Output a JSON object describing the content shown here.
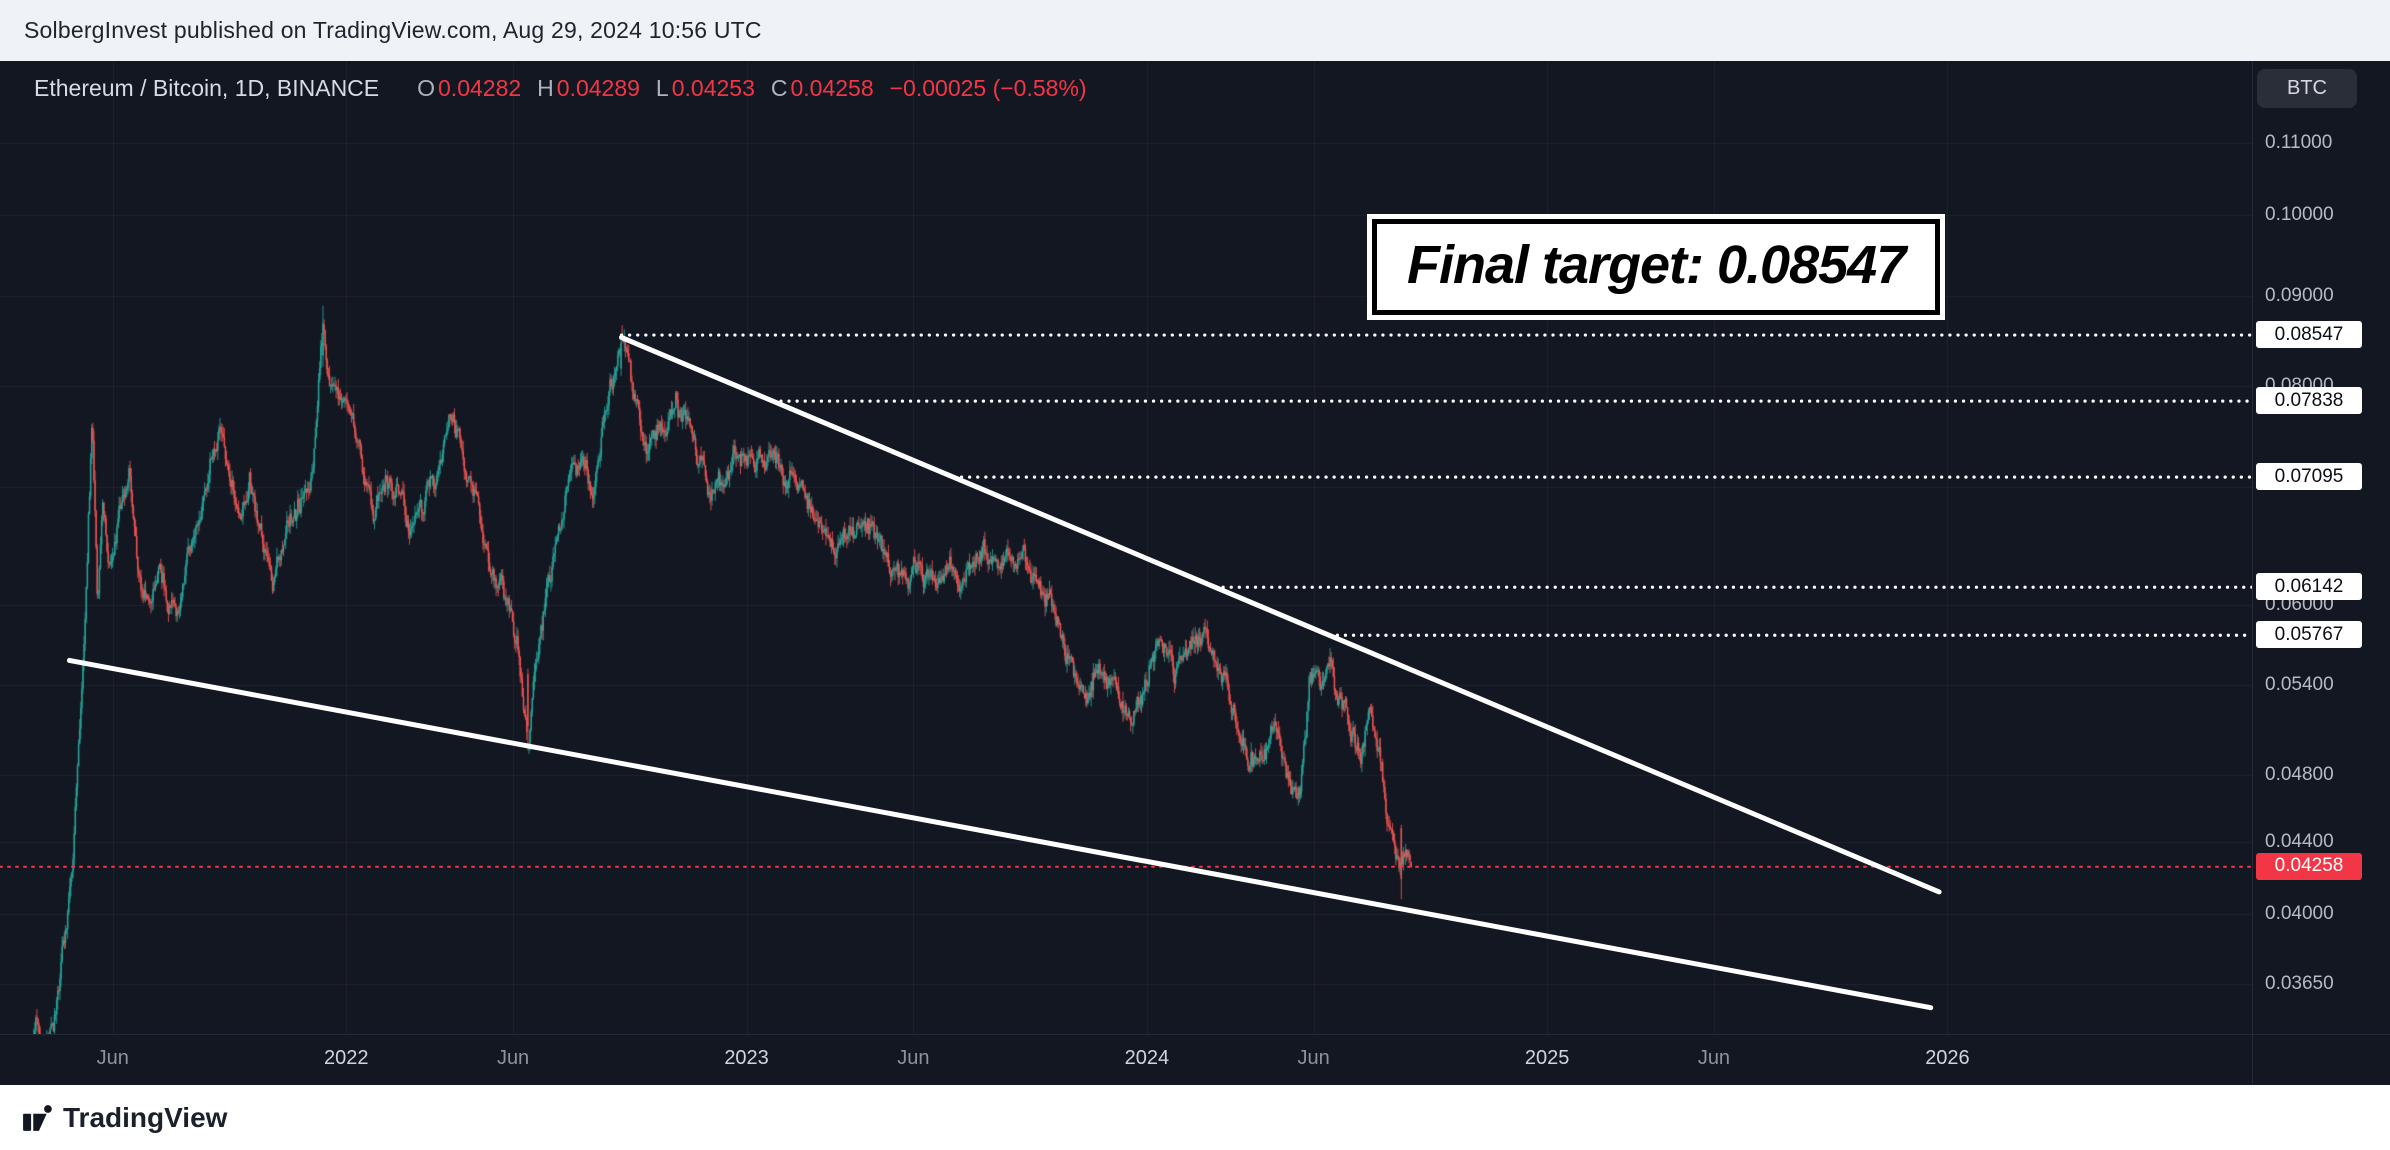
{
  "header": {
    "text": "SolbergInvest published on TradingView.com, Aug 29, 2024 10:56 UTC"
  },
  "legend": {
    "title": "Ethereum / Bitcoin, 1D, BINANCE",
    "ohlc": [
      {
        "k": "O",
        "v": "0.04282"
      },
      {
        "k": "H",
        "v": "0.04289"
      },
      {
        "k": "L",
        "v": "0.04253"
      },
      {
        "k": "C",
        "v": "0.04258"
      }
    ],
    "change": "−0.00025 (−0.58%)"
  },
  "axis_button_label": "BTC",
  "annotation": {
    "text": "Final target: 0.08547"
  },
  "footer": {
    "brand": "TradingView"
  },
  "colors": {
    "background": "#131722",
    "header_bg": "#eff2f7",
    "footer_bg": "#ffffff",
    "up": "#26a69a",
    "down": "#ef5350",
    "accent_red": "#f23645",
    "drawing_white": "#ffffff",
    "label_box_bg": "#ffffff",
    "label_box_text": "#000000",
    "grid": "rgba(255,255,255,0.05)"
  },
  "chart_data": {
    "type": "candlestick",
    "symbol": "Ethereum / Bitcoin",
    "interval": "1D",
    "exchange": "BINANCE",
    "quote_unit": "BTC",
    "price_scale": "log",
    "last_candle": {
      "open": 0.04282,
      "high": 0.04289,
      "low": 0.04253,
      "close": 0.04258,
      "change": -0.00025,
      "change_pct": -0.58
    },
    "x_domain_months_from_2021_06": [
      -3.381,
      64.13
    ],
    "y_domain_price": [
      0.0342,
      0.1224
    ],
    "x_ticks": [
      {
        "label": "Jun",
        "m": 0
      },
      {
        "label": "2022",
        "m": 7,
        "year": true
      },
      {
        "label": "Jun",
        "m": 12
      },
      {
        "label": "2023",
        "m": 19,
        "year": true
      },
      {
        "label": "Jun",
        "m": 24
      },
      {
        "label": "2024",
        "m": 31,
        "year": true
      },
      {
        "label": "Jun",
        "m": 36
      },
      {
        "label": "2025",
        "m": 43,
        "year": true
      },
      {
        "label": "Jun",
        "m": 48
      },
      {
        "label": "2026",
        "m": 55,
        "year": true
      }
    ],
    "y_ticks": [
      {
        "label": "0.11000",
        "price": 0.11
      },
      {
        "label": "0.10000",
        "price": 0.1
      },
      {
        "label": "0.09000",
        "price": 0.09
      },
      {
        "label": "0.08000",
        "price": 0.08
      },
      {
        "label": "0.06000",
        "price": 0.06
      },
      {
        "label": "0.05400",
        "price": 0.054
      },
      {
        "label": "0.04800",
        "price": 0.048
      },
      {
        "label": "0.04400",
        "price": 0.044
      },
      {
        "label": "0.04000",
        "price": 0.04
      },
      {
        "label": "0.03650",
        "price": 0.0365
      }
    ],
    "grid_prices": [
      0.11,
      0.1,
      0.09,
      0.08,
      0.07,
      0.06,
      0.054,
      0.048,
      0.044,
      0.04,
      0.0365
    ],
    "level_lines": [
      {
        "label": "0.08547",
        "price": 0.08547
      },
      {
        "label": "0.07838",
        "price": 0.07838
      },
      {
        "label": "0.07095",
        "price": 0.07095
      },
      {
        "label": "0.06142",
        "price": 0.06142
      },
      {
        "label": "0.05767",
        "price": 0.05767
      }
    ],
    "current_price_line": {
      "label": "0.04258",
      "price": 0.04258
    },
    "trendlines": [
      {
        "name": "upper-wedge-line",
        "m1": 15.25,
        "p1": 0.0852,
        "m2": 54.75,
        "p2": 0.0412
      },
      {
        "name": "lower-wedge-line",
        "m1": -1.3,
        "p1": 0.0558,
        "m2": 54.5,
        "p2": 0.0354
      }
    ],
    "series_start_m": -2.7,
    "series_end_m": 38.93,
    "series_keypoints": [
      [
        -2.7,
        0.0325
      ],
      [
        -2.3,
        0.0345
      ],
      [
        -2.0,
        0.0335
      ],
      [
        -1.6,
        0.0365
      ],
      [
        -1.2,
        0.042
      ],
      [
        -0.9,
        0.056
      ],
      [
        -0.62,
        0.078
      ],
      [
        -0.45,
        0.061
      ],
      [
        -0.3,
        0.07
      ],
      [
        -0.1,
        0.064
      ],
      [
        0.2,
        0.069
      ],
      [
        0.5,
        0.0715
      ],
      [
        0.8,
        0.062
      ],
      [
        1.1,
        0.06
      ],
      [
        1.4,
        0.0645
      ],
      [
        1.7,
        0.061
      ],
      [
        2.0,
        0.0585
      ],
      [
        2.4,
        0.0655
      ],
      [
        2.8,
        0.069
      ],
      [
        3.2,
        0.074
      ],
      [
        3.5,
        0.07
      ],
      [
        3.8,
        0.0675
      ],
      [
        4.1,
        0.071
      ],
      [
        4.5,
        0.066
      ],
      [
        4.8,
        0.0615
      ],
      [
        5.2,
        0.065
      ],
      [
        5.6,
        0.0685
      ],
      [
        5.9,
        0.071
      ],
      [
        6.1,
        0.078
      ],
      [
        6.3,
        0.088
      ],
      [
        6.5,
        0.082
      ],
      [
        6.8,
        0.079
      ],
      [
        7.1,
        0.077
      ],
      [
        7.4,
        0.0725
      ],
      [
        7.8,
        0.068
      ],
      [
        8.2,
        0.0715
      ],
      [
        8.6,
        0.069
      ],
      [
        9.0,
        0.066
      ],
      [
        9.4,
        0.069
      ],
      [
        9.8,
        0.072
      ],
      [
        10.1,
        0.0765
      ],
      [
        10.5,
        0.0735
      ],
      [
        10.9,
        0.0695
      ],
      [
        11.3,
        0.064
      ],
      [
        11.7,
        0.061
      ],
      [
        12.1,
        0.057
      ],
      [
        12.45,
        0.05
      ],
      [
        12.7,
        0.056
      ],
      [
        13.0,
        0.062
      ],
      [
        13.4,
        0.066
      ],
      [
        13.8,
        0.0725
      ],
      [
        14.1,
        0.074
      ],
      [
        14.4,
        0.0705
      ],
      [
        14.8,
        0.0775
      ],
      [
        15.25,
        0.085
      ],
      [
        15.6,
        0.078
      ],
      [
        16.0,
        0.0745
      ],
      [
        16.4,
        0.076
      ],
      [
        16.9,
        0.0785
      ],
      [
        17.4,
        0.073
      ],
      [
        18.1,
        0.0695
      ],
      [
        18.6,
        0.072
      ],
      [
        19.1,
        0.071
      ],
      [
        19.8,
        0.0745
      ],
      [
        20.4,
        0.0705
      ],
      [
        21.0,
        0.0685
      ],
      [
        21.6,
        0.064
      ],
      [
        22.1,
        0.0655
      ],
      [
        22.6,
        0.067
      ],
      [
        23.1,
        0.064
      ],
      [
        23.6,
        0.0625
      ],
      [
        24.1,
        0.0645
      ],
      [
        24.6,
        0.062
      ],
      [
        25.1,
        0.0635
      ],
      [
        25.6,
        0.0622
      ],
      [
        26.1,
        0.064
      ],
      [
        26.6,
        0.0615
      ],
      [
        27.1,
        0.0628
      ],
      [
        27.6,
        0.0608
      ],
      [
        28.1,
        0.0598
      ],
      [
        28.6,
        0.0562
      ],
      [
        29.1,
        0.054
      ],
      [
        29.5,
        0.0558
      ],
      [
        30.0,
        0.0545
      ],
      [
        30.5,
        0.0522
      ],
      [
        31.0,
        0.0552
      ],
      [
        31.3,
        0.0588
      ],
      [
        31.8,
        0.0548
      ],
      [
        32.3,
        0.0556
      ],
      [
        32.8,
        0.0575
      ],
      [
        33.3,
        0.0545
      ],
      [
        33.8,
        0.0512
      ],
      [
        34.3,
        0.0492
      ],
      [
        34.8,
        0.0505
      ],
      [
        35.2,
        0.0478
      ],
      [
        35.6,
        0.0468
      ],
      [
        35.9,
        0.0545
      ],
      [
        36.2,
        0.0528
      ],
      [
        36.5,
        0.054
      ],
      [
        36.8,
        0.0535
      ],
      [
        37.1,
        0.0512
      ],
      [
        37.4,
        0.0498
      ],
      [
        37.7,
        0.0518
      ],
      [
        38.0,
        0.0495
      ],
      [
        38.25,
        0.0452
      ],
      [
        38.5,
        0.044
      ],
      [
        38.7,
        0.0432
      ],
      [
        38.93,
        0.0426
      ]
    ]
  }
}
